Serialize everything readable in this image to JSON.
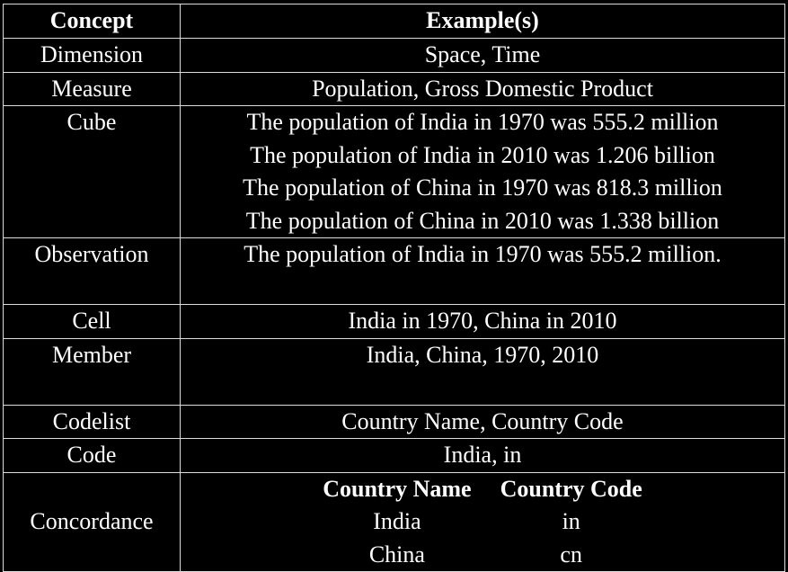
{
  "table": {
    "header": [
      "Concept",
      "Example(s)"
    ],
    "rows": [
      {
        "concept": "Dimension",
        "examples": [
          "Space, Time"
        ]
      },
      {
        "concept": "Measure",
        "examples": [
          "Population, Gross Domestic Product"
        ]
      },
      {
        "concept": "Cube",
        "examples": [
          "The population of India in 1970 was 555.2 million",
          "The population of India in 2010 was 1.206 billion",
          "The population of China in 1970 was 818.3 million",
          "The population of China in 2010 was 1.338 billion"
        ]
      },
      {
        "concept": "Observation",
        "examples": [
          "The population of India in 1970 was 555.2 million."
        ]
      },
      {
        "concept": "Cell",
        "examples": [
          "India in 1970, China in 2010"
        ]
      },
      {
        "concept": "Member",
        "examples": [
          "India, China, 1970, 2010"
        ]
      },
      {
        "concept": "Codelist",
        "examples": [
          "Country Name, Country Code"
        ]
      },
      {
        "concept": "Code",
        "examples": [
          "India, in"
        ]
      },
      {
        "concept": "Concordance",
        "nested": {
          "header": [
            "Country Name",
            "Country Code"
          ],
          "rows": [
            [
              "India",
              "in"
            ],
            [
              "China",
              "cn"
            ]
          ]
        }
      }
    ]
  }
}
